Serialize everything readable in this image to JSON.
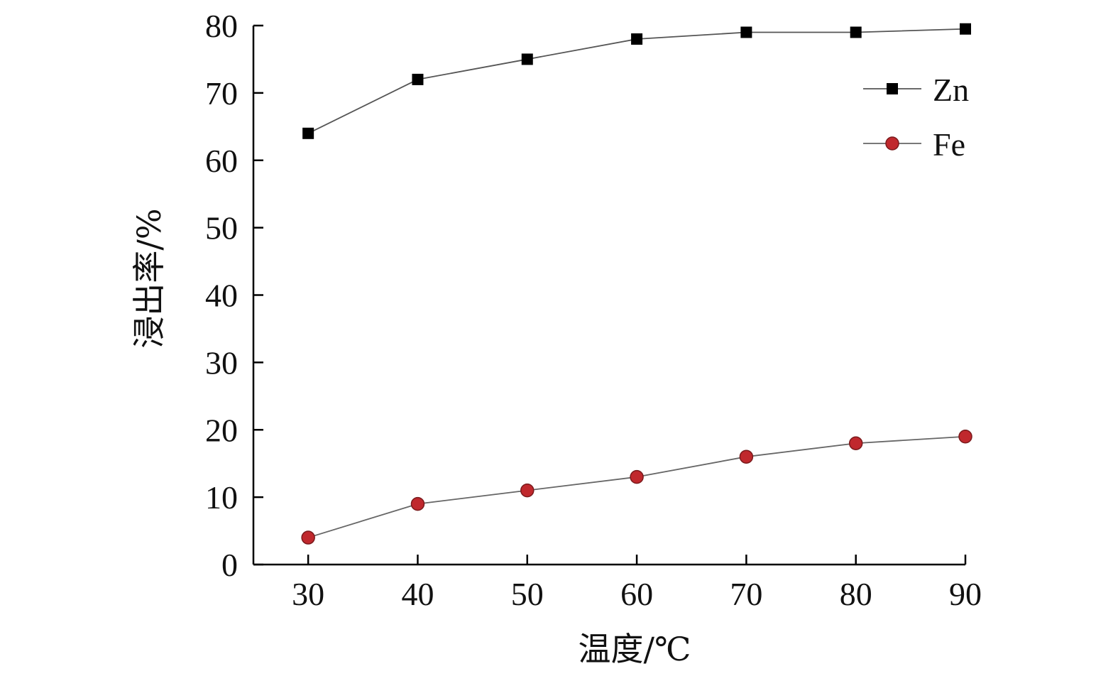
{
  "chart_data": {
    "type": "line",
    "xlabel": "温度/℃",
    "ylabel": "浸出率/%",
    "x": [
      30,
      40,
      50,
      60,
      70,
      80,
      90
    ],
    "xlim": [
      25,
      90
    ],
    "ylim": [
      0,
      80
    ],
    "xticks": [
      "30",
      "40",
      "50",
      "60",
      "70",
      "80",
      "90"
    ],
    "yticks": [
      "0",
      "10",
      "20",
      "30",
      "40",
      "50",
      "60",
      "70",
      "80"
    ],
    "grid": false,
    "legend_position": "top-right",
    "series": [
      {
        "name": "Zn",
        "marker": "square",
        "color": "#000000",
        "line_color": "#555555",
        "values": [
          64,
          72,
          75,
          78,
          79,
          79,
          79.5
        ]
      },
      {
        "name": "Fe",
        "marker": "circle",
        "color": "#c0282d",
        "line_color": "#666666",
        "values": [
          4,
          9,
          11,
          13,
          16,
          18,
          19
        ]
      }
    ]
  }
}
